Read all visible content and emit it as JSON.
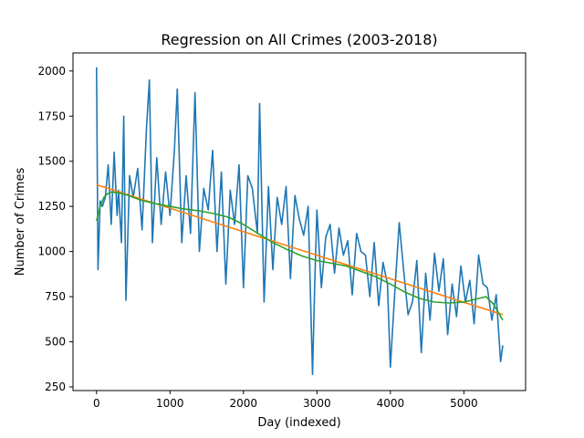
{
  "chart_data": {
    "type": "line",
    "title": "Regression on All Crimes (2003-2018)",
    "xlabel": "Day (indexed)",
    "ylabel": "Number of Crimes",
    "xlim": [
      -320,
      5840
    ],
    "ylim": [
      230,
      2100
    ],
    "xticks": [
      0,
      1000,
      2000,
      3000,
      4000,
      5000
    ],
    "yticks": [
      250,
      500,
      750,
      1000,
      1250,
      1500,
      1750,
      2000
    ],
    "grid": false,
    "legend": "none",
    "series": [
      {
        "color": "#1f77b4",
        "kind": "daily counts (approximate envelope)",
        "x": [
          0,
          20,
          50,
          80,
          120,
          160,
          200,
          240,
          280,
          300,
          340,
          370,
          400,
          450,
          500,
          560,
          620,
          680,
          720,
          760,
          820,
          880,
          940,
          1000,
          1060,
          1100,
          1160,
          1220,
          1280,
          1340,
          1400,
          1460,
          1520,
          1580,
          1640,
          1700,
          1760,
          1820,
          1880,
          1940,
          2000,
          2060,
          2120,
          2190,
          2220,
          2280,
          2340,
          2400,
          2460,
          2520,
          2580,
          2640,
          2700,
          2760,
          2820,
          2880,
          2940,
          2970,
          3000,
          3060,
          3120,
          3180,
          3240,
          3300,
          3360,
          3420,
          3480,
          3540,
          3600,
          3660,
          3720,
          3780,
          3840,
          3900,
          3960,
          4000,
          4060,
          4120,
          4180,
          4240,
          4300,
          4360,
          4420,
          4480,
          4540,
          4600,
          4660,
          4720,
          4780,
          4840,
          4900,
          4960,
          5020,
          5080,
          5140,
          5200,
          5260,
          5320,
          5380,
          5440,
          5500,
          5530
        ],
        "y": [
          2020,
          900,
          1280,
          1250,
          1300,
          1480,
          1150,
          1550,
          1200,
          1340,
          1050,
          1750,
          730,
          1420,
          1300,
          1460,
          1120,
          1680,
          1950,
          1050,
          1520,
          1150,
          1440,
          1200,
          1560,
          1900,
          1050,
          1420,
          1100,
          1880,
          1000,
          1350,
          1230,
          1560,
          1000,
          1440,
          820,
          1340,
          1150,
          1480,
          800,
          1420,
          1350,
          1100,
          1820,
          720,
          1360,
          900,
          1300,
          1150,
          1360,
          850,
          1310,
          1180,
          1090,
          1250,
          320,
          820,
          1230,
          800,
          1080,
          1150,
          880,
          1130,
          980,
          1060,
          760,
          1100,
          1000,
          980,
          750,
          1050,
          700,
          940,
          820,
          360,
          780,
          1160,
          900,
          650,
          720,
          950,
          440,
          880,
          620,
          990,
          780,
          960,
          540,
          820,
          640,
          920,
          720,
          840,
          600,
          980,
          820,
          800,
          620,
          760,
          390,
          480
        ]
      },
      {
        "color": "#ff7f0e",
        "kind": "linear regression",
        "x": [
          0,
          5530
        ],
        "y": [
          1370,
          650
        ]
      },
      {
        "color": "#2ca02c",
        "kind": "polynomial regression",
        "x": [
          0,
          50,
          100,
          150,
          200,
          300,
          400,
          500,
          600,
          700,
          800,
          1000,
          1200,
          1400,
          1600,
          1800,
          2000,
          2200,
          2400,
          2600,
          2800,
          3000,
          3200,
          3400,
          3600,
          3800,
          4000,
          4200,
          4400,
          4600,
          4800,
          5000,
          5200,
          5300,
          5400,
          5530
        ],
        "y": [
          1170,
          1250,
          1300,
          1320,
          1330,
          1325,
          1315,
          1300,
          1285,
          1275,
          1265,
          1250,
          1235,
          1225,
          1210,
          1190,
          1150,
          1100,
          1050,
          1010,
          975,
          950,
          935,
          920,
          890,
          860,
          820,
          775,
          740,
          720,
          715,
          720,
          740,
          750,
          710,
          620
        ]
      }
    ]
  }
}
